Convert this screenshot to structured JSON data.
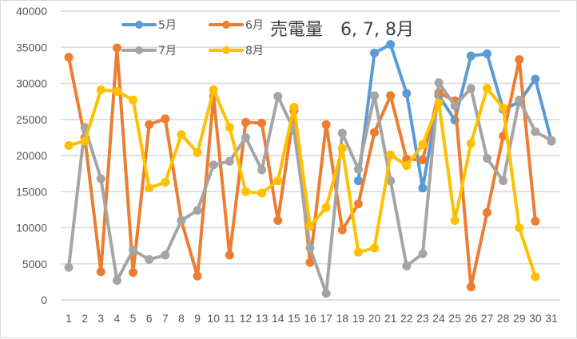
{
  "chart_data": {
    "type": "line",
    "title": "売電量　6, 7, 8月",
    "xlabel": "",
    "ylabel": "",
    "ylim": [
      0,
      40000
    ],
    "yticks": [
      0,
      5000,
      10000,
      15000,
      20000,
      25000,
      30000,
      35000,
      40000
    ],
    "grid": true,
    "legend_position": "top-left inside",
    "x": [
      1,
      2,
      3,
      4,
      5,
      6,
      7,
      8,
      9,
      10,
      11,
      12,
      13,
      14,
      15,
      16,
      17,
      18,
      19,
      20,
      21,
      22,
      23,
      24,
      25,
      26,
      27,
      28,
      29,
      30,
      31
    ],
    "series": [
      {
        "name": "5月",
        "color": "#5B9BD5",
        "values": [
          null,
          null,
          null,
          null,
          null,
          null,
          null,
          null,
          null,
          null,
          null,
          null,
          null,
          null,
          null,
          null,
          null,
          null,
          16500,
          34200,
          35400,
          28600,
          15500,
          28300,
          24900,
          33800,
          34100,
          26400,
          27400,
          30600,
          22000
        ]
      },
      {
        "name": "6月",
        "color": "#ED7D31",
        "values": [
          33600,
          22500,
          3900,
          34900,
          3800,
          24300,
          25100,
          11000,
          3300,
          28200,
          6200,
          24600,
          24500,
          11000,
          26200,
          5200,
          24300,
          9700,
          13300,
          23200,
          28300,
          19500,
          19400,
          28700,
          27600,
          1800,
          12100,
          22700,
          33300,
          10900,
          null
        ]
      },
      {
        "name": "7月",
        "color": "#A5A5A5",
        "values": [
          4500,
          23900,
          16800,
          2700,
          6900,
          5600,
          6200,
          11000,
          12400,
          18700,
          19200,
          22500,
          18000,
          28200,
          23500,
          7200,
          900,
          23100,
          18100,
          28300,
          16500,
          4700,
          6400,
          30100,
          26900,
          29300,
          19600,
          16500,
          27700,
          23300,
          22100
        ]
      },
      {
        "name": "8月",
        "color": "#FFC000",
        "values": [
          21400,
          22000,
          29100,
          28900,
          27700,
          15500,
          16300,
          22900,
          20400,
          29100,
          23900,
          15000,
          14800,
          16500,
          26700,
          10200,
          12800,
          21000,
          6600,
          7200,
          20100,
          18600,
          21500,
          27300,
          11000,
          21700,
          29300,
          26600,
          10000,
          3200,
          null
        ]
      }
    ]
  },
  "legend": [
    {
      "label": "5月",
      "color": "#5B9BD5"
    },
    {
      "label": "6月",
      "color": "#ED7D31"
    },
    {
      "label": "7月",
      "color": "#A5A5A5"
    },
    {
      "label": "8月",
      "color": "#FFC000"
    }
  ],
  "labels": {
    "title": "売電量　6, 7, 8月",
    "yticks": [
      "0",
      "5000",
      "10000",
      "15000",
      "20000",
      "25000",
      "30000",
      "35000",
      "40000"
    ],
    "xticks": [
      "1",
      "2",
      "3",
      "4",
      "5",
      "6",
      "7",
      "8",
      "9",
      "10",
      "11",
      "12",
      "13",
      "14",
      "15",
      "16",
      "17",
      "18",
      "19",
      "20",
      "21",
      "22",
      "23",
      "24",
      "25",
      "26",
      "27",
      "28",
      "29",
      "30",
      "31"
    ]
  }
}
